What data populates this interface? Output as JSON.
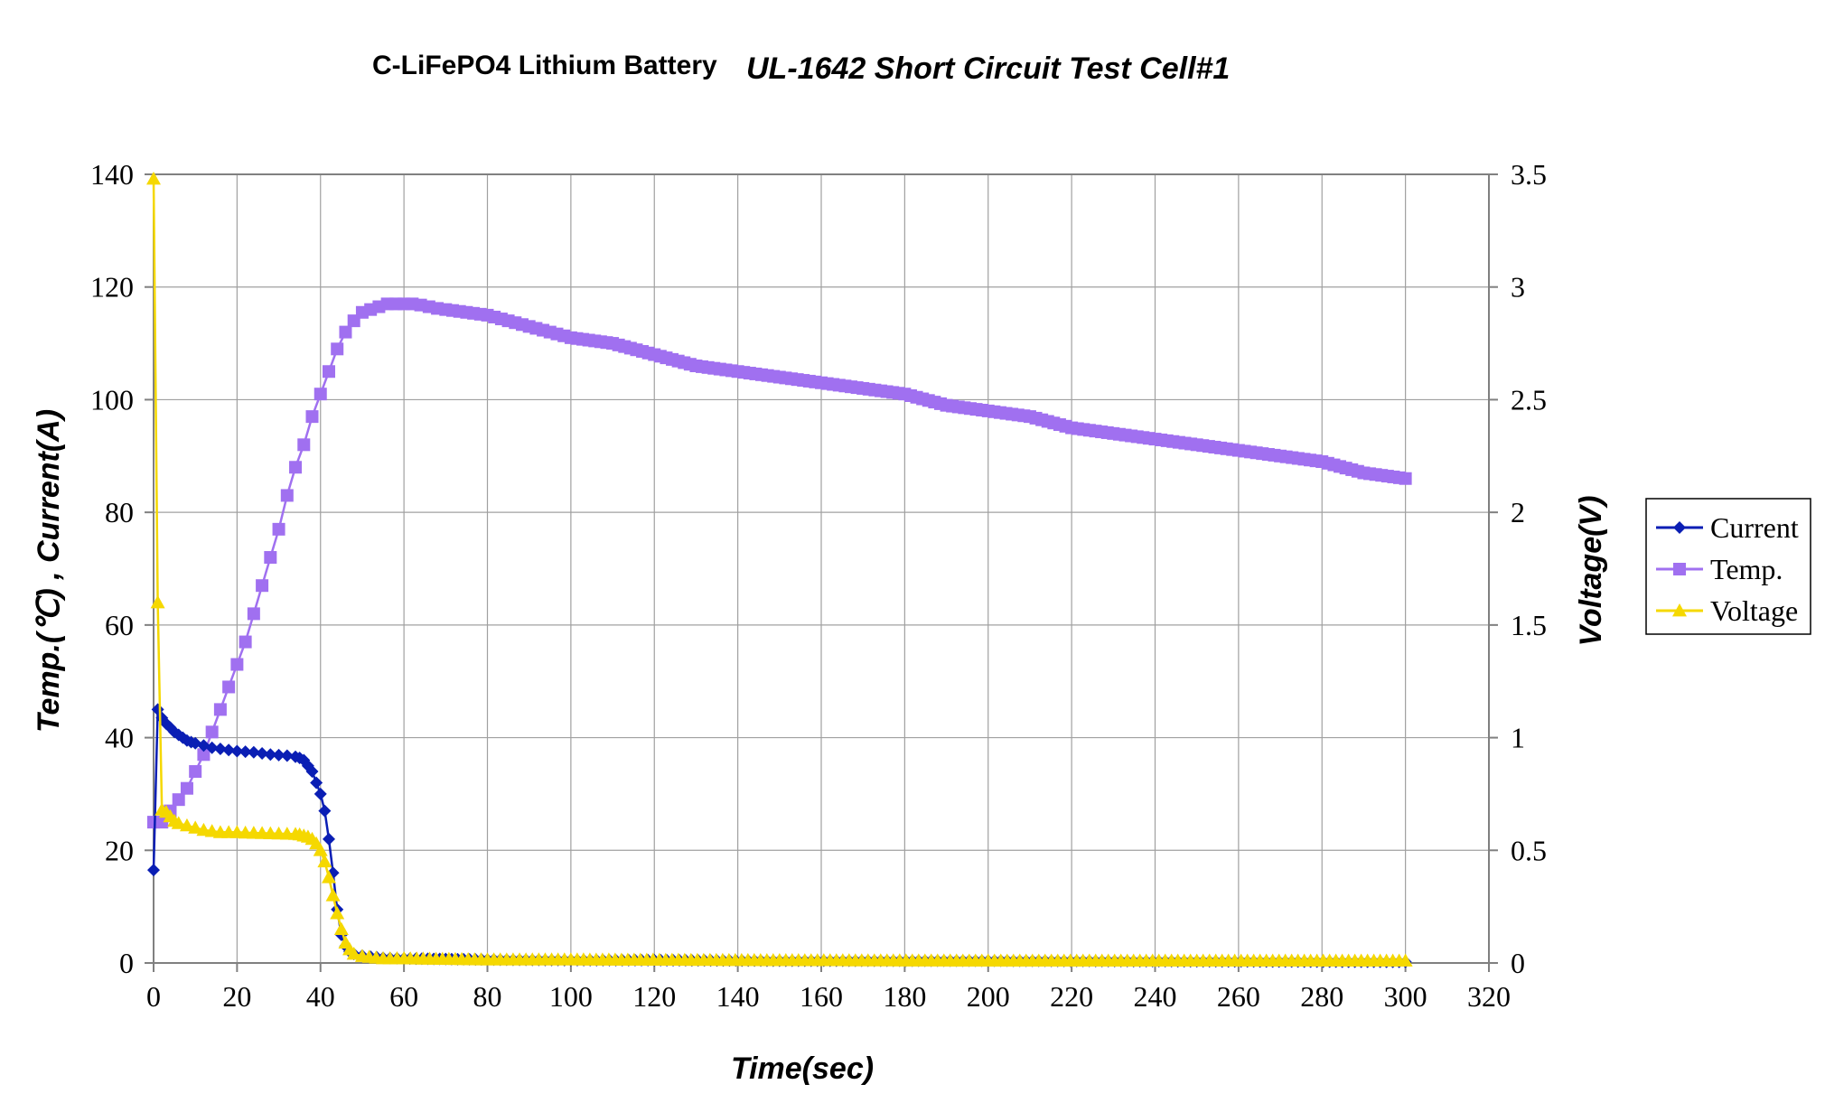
{
  "chart_data": {
    "type": "line",
    "title_prefix": "C-LiFePO4 Lithium Battery",
    "title_main": "UL-1642 Short Circuit Test Cell#1",
    "xlabel": "Time(sec)",
    "ylabel_left": "Temp.(℃) , Current(A)",
    "ylabel_right": "Voltage(V)",
    "xlim": [
      0,
      320
    ],
    "ylim_left": [
      0,
      140
    ],
    "ylim_right": [
      0,
      3.5
    ],
    "x_ticks": [
      "0",
      "20",
      "40",
      "60",
      "80",
      "100",
      "120",
      "140",
      "160",
      "180",
      "200",
      "220",
      "240",
      "260",
      "280",
      "300",
      "320"
    ],
    "y_ticks_left": [
      "0",
      "20",
      "40",
      "60",
      "80",
      "100",
      "120",
      "140"
    ],
    "y_ticks_right": [
      "0",
      "0.5",
      "1",
      "1.5",
      "2",
      "2.5",
      "3",
      "3.5"
    ],
    "grid": true,
    "legend_position": "right",
    "series": [
      {
        "name": "Current",
        "axis": "left",
        "color": "#0a1eb4",
        "marker": "diamond",
        "x": [
          0,
          1,
          2,
          3,
          4,
          5,
          6,
          7,
          8,
          9,
          10,
          12,
          14,
          16,
          18,
          20,
          22,
          24,
          26,
          28,
          30,
          32,
          34,
          35,
          36,
          37,
          38,
          39,
          40,
          41,
          42,
          43,
          44,
          45,
          46,
          47,
          48,
          50,
          52,
          55,
          60,
          70,
          80,
          100,
          120,
          150,
          200,
          250,
          300
        ],
        "y": [
          16.5,
          45,
          43.5,
          42.5,
          41.8,
          41,
          40.5,
          40,
          39.5,
          39.2,
          39,
          38.6,
          38.2,
          38,
          37.8,
          37.6,
          37.5,
          37.4,
          37.2,
          37,
          36.9,
          36.8,
          36.6,
          36.4,
          36,
          35,
          34,
          32,
          30,
          27,
          22,
          16,
          9.5,
          5,
          3,
          2,
          1.6,
          1.3,
          1.1,
          0.9,
          0.8,
          0.7,
          0.6,
          0.5,
          0.5,
          0.4,
          0.4,
          0.3,
          0.2
        ]
      },
      {
        "name": "Temp.",
        "axis": "left",
        "color": "#a070f0",
        "marker": "square",
        "x": [
          0,
          2,
          4,
          6,
          8,
          10,
          12,
          14,
          16,
          18,
          20,
          22,
          24,
          26,
          28,
          30,
          32,
          34,
          36,
          38,
          40,
          42,
          44,
          46,
          48,
          50,
          52,
          54,
          56,
          58,
          60,
          62,
          64,
          66,
          68,
          70,
          75,
          80,
          85,
          90,
          95,
          100,
          110,
          120,
          130,
          140,
          150,
          160,
          170,
          180,
          190,
          200,
          210,
          220,
          230,
          240,
          250,
          260,
          270,
          280,
          290,
          300
        ],
        "y": [
          25,
          25,
          27,
          29,
          31,
          34,
          37,
          41,
          45,
          49,
          53,
          57,
          62,
          67,
          72,
          77,
          83,
          88,
          92,
          97,
          101,
          105,
          109,
          112,
          114,
          115.5,
          116,
          116.5,
          117,
          117,
          117,
          117,
          116.8,
          116.5,
          116.2,
          116,
          115.5,
          115,
          114,
          113,
          112,
          111,
          110,
          108,
          106,
          105,
          104,
          103,
          102,
          101,
          99,
          98,
          97,
          95,
          94,
          93,
          92,
          91,
          90,
          89,
          87,
          86
        ]
      },
      {
        "name": "Voltage",
        "axis": "right",
        "color": "#f5d800",
        "marker": "triangle",
        "x": [
          0,
          1,
          2,
          3,
          4,
          5,
          6,
          8,
          10,
          12,
          14,
          16,
          18,
          20,
          22,
          24,
          26,
          28,
          30,
          32,
          34,
          35,
          36,
          37,
          38,
          39,
          40,
          41,
          42,
          43,
          44,
          45,
          46,
          47,
          48,
          50,
          55,
          60,
          80,
          100,
          150,
          200,
          250,
          300
        ],
        "y": [
          3.48,
          1.6,
          0.68,
          0.67,
          0.65,
          0.63,
          0.62,
          0.61,
          0.6,
          0.59,
          0.585,
          0.58,
          0.58,
          0.58,
          0.578,
          0.577,
          0.576,
          0.575,
          0.574,
          0.573,
          0.572,
          0.57,
          0.565,
          0.56,
          0.55,
          0.53,
          0.5,
          0.45,
          0.38,
          0.3,
          0.22,
          0.15,
          0.09,
          0.06,
          0.04,
          0.03,
          0.02,
          0.02,
          0.015,
          0.015,
          0.012,
          0.01,
          0.01,
          0.01
        ]
      }
    ]
  }
}
